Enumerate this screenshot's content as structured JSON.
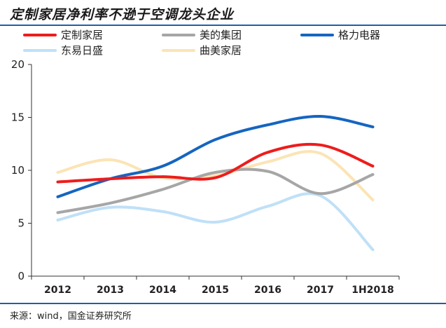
{
  "header": {
    "title": "定制家居净利率不逊于空调龙头企业"
  },
  "footer": {
    "source": "来源：wind，国金证券研究所"
  },
  "chart_data": {
    "type": "line",
    "categories": [
      "2012",
      "2013",
      "2014",
      "2015",
      "2016",
      "2017",
      "1H2018"
    ],
    "yticks": [
      "0",
      "5",
      "10",
      "15",
      "20"
    ],
    "ylim": [
      0,
      20
    ],
    "grid": false,
    "legend_position": "top",
    "series": [
      {
        "name": "定制家居",
        "color": "#ee1c1c",
        "values": [
          8.9,
          9.2,
          9.4,
          9.3,
          11.7,
          12.4,
          10.4
        ]
      },
      {
        "name": "美的集团",
        "color": "#a6a6a6",
        "values": [
          6.0,
          6.9,
          8.2,
          9.8,
          9.9,
          7.8,
          9.6
        ]
      },
      {
        "name": "格力电器",
        "color": "#1565c0",
        "values": [
          7.5,
          9.2,
          10.4,
          12.9,
          14.3,
          15.1,
          14.1
        ]
      },
      {
        "name": "东易日盛",
        "color": "#bfe0f7",
        "values": [
          5.3,
          6.5,
          6.1,
          5.1,
          6.6,
          7.6,
          2.5
        ]
      },
      {
        "name": "曲美家居",
        "color": "#fbe4b5",
        "values": [
          9.8,
          11.0,
          9.3,
          9.5,
          10.8,
          11.6,
          7.2
        ]
      }
    ]
  }
}
